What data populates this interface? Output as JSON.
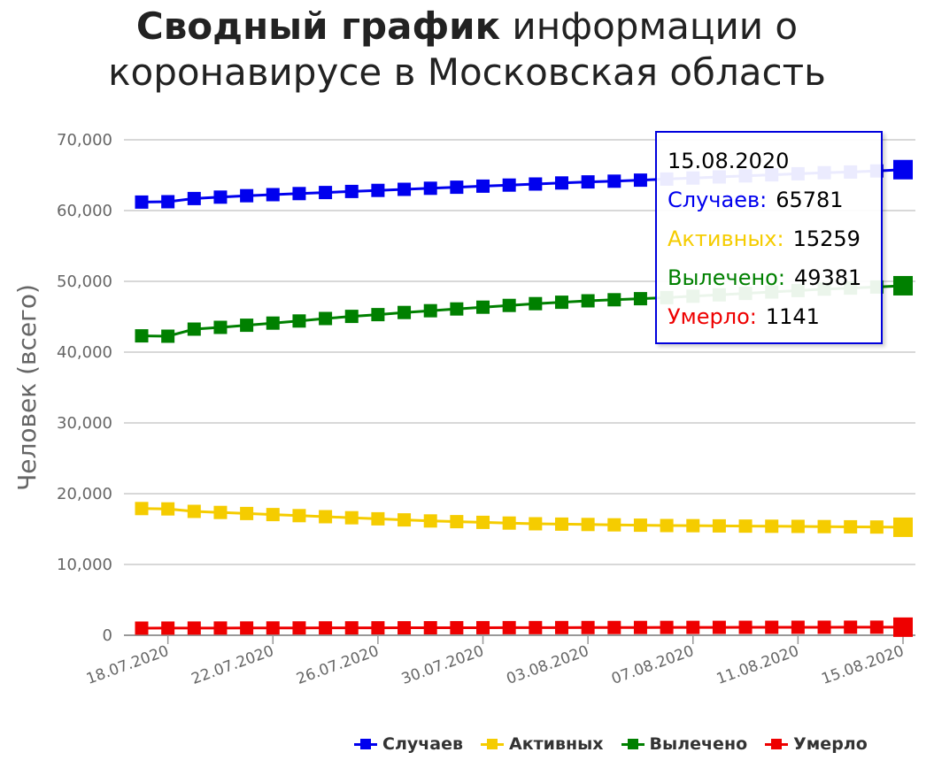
{
  "title": {
    "bold": "Сводный график",
    "rest_line1": " информации о",
    "line2": "коронавирусе в Московская область"
  },
  "chart_data": {
    "type": "line",
    "ylabel": "Человек (всего)",
    "ylim": [
      0,
      70000
    ],
    "yticks": [
      "0",
      "10,000",
      "20,000",
      "30,000",
      "40,000",
      "50,000",
      "60,000",
      "70,000"
    ],
    "ytick_values": [
      0,
      10000,
      20000,
      30000,
      40000,
      50000,
      60000,
      70000
    ],
    "grid": true,
    "legend_position": "bottom-right",
    "x": [
      "17.07.2020",
      "18.07.2020",
      "19.07.2020",
      "20.07.2020",
      "21.07.2020",
      "22.07.2020",
      "23.07.2020",
      "24.07.2020",
      "25.07.2020",
      "26.07.2020",
      "27.07.2020",
      "28.07.2020",
      "29.07.2020",
      "30.07.2020",
      "31.07.2020",
      "01.08.2020",
      "02.08.2020",
      "03.08.2020",
      "04.08.2020",
      "05.08.2020",
      "06.08.2020",
      "07.08.2020",
      "08.08.2020",
      "09.08.2020",
      "10.08.2020",
      "11.08.2020",
      "12.08.2020",
      "13.08.2020",
      "14.08.2020",
      "15.08.2020"
    ],
    "xtick_labels": [
      "18.07.2020",
      "22.07.2020",
      "26.07.2020",
      "30.07.2020",
      "03.08.2020",
      "07.08.2020",
      "11.08.2020",
      "15.08.2020"
    ],
    "series": [
      {
        "name": "Случаев",
        "color": "#0000ee",
        "values": [
          61200,
          61250,
          61700,
          61900,
          62100,
          62250,
          62400,
          62550,
          62700,
          62850,
          63000,
          63150,
          63300,
          63450,
          63600,
          63750,
          63900,
          64050,
          64150,
          64300,
          64450,
          64600,
          64750,
          64900,
          65050,
          65200,
          65350,
          65450,
          65600,
          65781
        ]
      },
      {
        "name": "Активных",
        "color": "#f5cc00",
        "values": [
          17900,
          17850,
          17500,
          17350,
          17200,
          17050,
          16900,
          16750,
          16600,
          16450,
          16300,
          16150,
          16050,
          15950,
          15850,
          15750,
          15700,
          15650,
          15600,
          15550,
          15500,
          15480,
          15450,
          15420,
          15400,
          15380,
          15350,
          15320,
          15290,
          15259
        ]
      },
      {
        "name": "Вылечено",
        "color": "#008000",
        "values": [
          42300,
          42250,
          43250,
          43500,
          43800,
          44100,
          44400,
          44750,
          45050,
          45300,
          45600,
          45850,
          46100,
          46350,
          46600,
          46850,
          47050,
          47250,
          47400,
          47550,
          47700,
          47900,
          48100,
          48300,
          48500,
          48700,
          48900,
          49050,
          49200,
          49381
        ]
      },
      {
        "name": "Умерло",
        "color": "#ee0000",
        "values": [
          1005,
          1010,
          1015,
          1020,
          1025,
          1030,
          1035,
          1040,
          1045,
          1050,
          1055,
          1060,
          1065,
          1070,
          1075,
          1080,
          1085,
          1090,
          1095,
          1100,
          1105,
          1110,
          1115,
          1120,
          1124,
          1128,
          1132,
          1135,
          1138,
          1141
        ]
      }
    ]
  },
  "tooltip": {
    "date": "15.08.2020",
    "rows": [
      {
        "label": "Случаев:",
        "value": "65781",
        "color": "#0000ee"
      },
      {
        "label": "Активных:",
        "value": "15259",
        "color": "#f5cc00"
      },
      {
        "label": "Вылечено:",
        "value": "49381",
        "color": "#008000"
      },
      {
        "label": "Умерло:",
        "value": "1141",
        "color": "#ee0000"
      }
    ]
  },
  "legend": [
    {
      "label": "Случаев",
      "color": "#0000ee"
    },
    {
      "label": "Активных",
      "color": "#f5cc00"
    },
    {
      "label": "Вылечено",
      "color": "#008000"
    },
    {
      "label": "Умерло",
      "color": "#ee0000"
    }
  ]
}
